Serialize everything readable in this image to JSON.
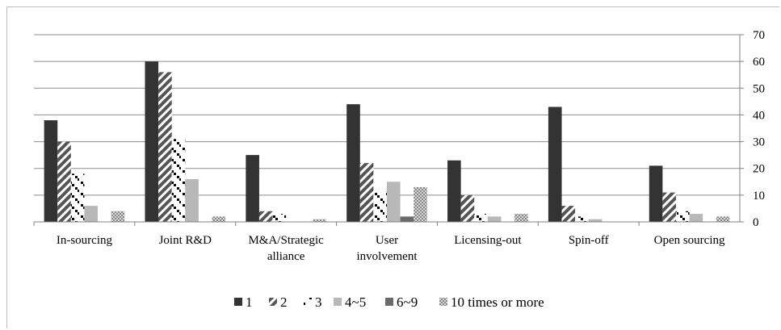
{
  "chart_data": {
    "type": "bar",
    "categories": [
      [
        "In-sourcing"
      ],
      [
        "Joint R&D"
      ],
      [
        "M&A/Strategic",
        "alliance"
      ],
      [
        "User",
        "involvement"
      ],
      [
        "Licensing-out"
      ],
      [
        "Spin-off"
      ],
      [
        "Open sourcing"
      ]
    ],
    "series": [
      {
        "name": "1",
        "values": [
          38,
          60,
          25,
          44,
          23,
          43,
          21
        ],
        "fill": "#333333",
        "pattern": "solid"
      },
      {
        "name": "2",
        "values": [
          30,
          56,
          4,
          22,
          10,
          6,
          11
        ],
        "fill": "#555555",
        "pattern": "diag"
      },
      {
        "name": "3",
        "values": [
          18,
          31,
          3,
          11,
          3,
          2,
          4
        ],
        "fill": "#000000",
        "pattern": "dots"
      },
      {
        "name": "4~5",
        "values": [
          6,
          16,
          0,
          15,
          2,
          1,
          3
        ],
        "fill": "#b8b8b8",
        "pattern": "solid"
      },
      {
        "name": "6~9",
        "values": [
          0,
          0,
          0,
          2,
          0,
          0,
          0
        ],
        "fill": "#6a6a6a",
        "pattern": "solid"
      },
      {
        "name": "10 times or more",
        "values": [
          4,
          2,
          1,
          13,
          3,
          0,
          2
        ],
        "fill": "#999999",
        "pattern": "check"
      }
    ],
    "ylim": [
      0,
      70
    ],
    "yticks": [
      "0",
      "10",
      "20",
      "30",
      "40",
      "50",
      "60",
      "70"
    ],
    "y_axis_side": "right",
    "grid": true,
    "legend_position": "bottom"
  }
}
